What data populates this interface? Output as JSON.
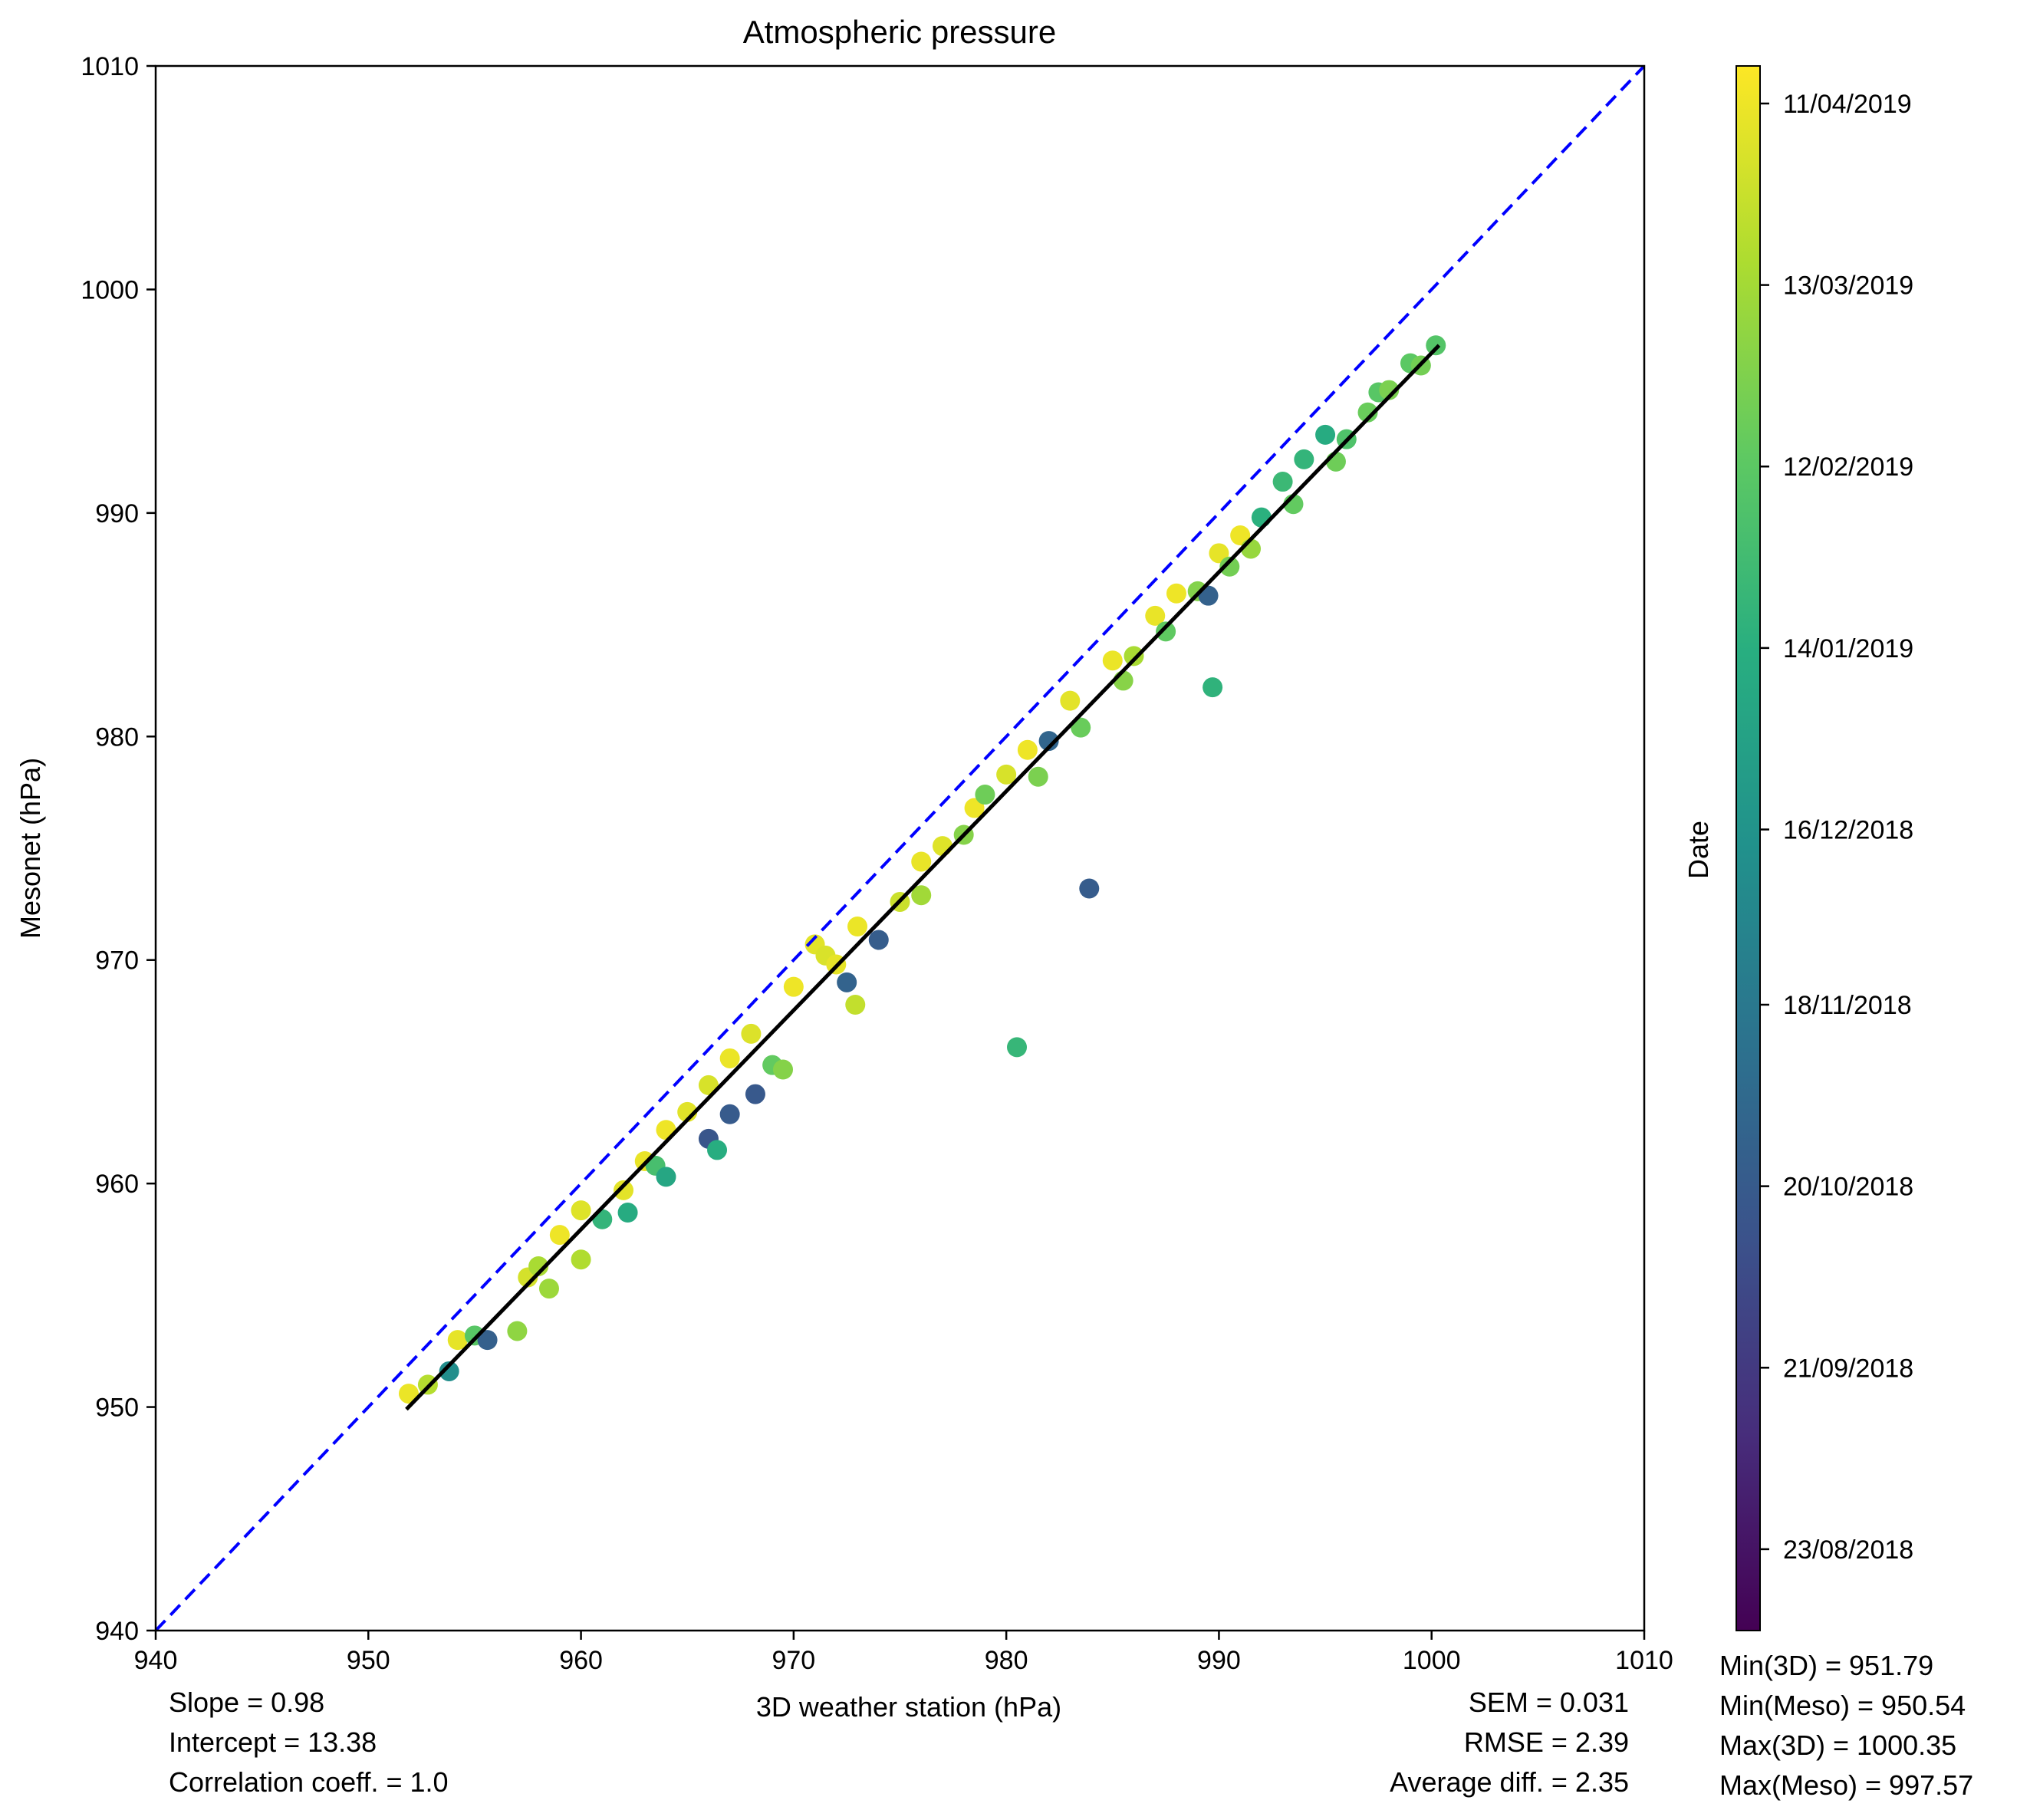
{
  "chart_data": {
    "type": "scatter",
    "title": "Atmospheric pressure",
    "xlabel": "3D weather station (hPa)",
    "ylabel": "Mesonet (hPa)",
    "xlim": [
      940,
      1010
    ],
    "ylim": [
      940,
      1010
    ],
    "xticks": [
      "940",
      "950",
      "960",
      "970",
      "980",
      "990",
      "1000",
      "1010"
    ],
    "yticks": [
      "940",
      "950",
      "960",
      "970",
      "980",
      "990",
      "1000",
      "1010"
    ],
    "grid": false,
    "colormap": "viridis",
    "colorbar": {
      "label": "Date",
      "start": "2018-08-10",
      "end": "2019-04-17",
      "ticks": [
        {
          "label": "23/08/2018",
          "date": "2018-08-23"
        },
        {
          "label": "21/09/2018",
          "date": "2018-09-21"
        },
        {
          "label": "20/10/2018",
          "date": "2018-10-20"
        },
        {
          "label": "18/11/2018",
          "date": "2018-11-18"
        },
        {
          "label": "16/12/2018",
          "date": "2018-12-16"
        },
        {
          "label": "14/01/2019",
          "date": "2019-01-14"
        },
        {
          "label": "12/02/2019",
          "date": "2019-02-12"
        },
        {
          "label": "13/03/2019",
          "date": "2019-03-13"
        },
        {
          "label": "11/04/2019",
          "date": "2019-04-11"
        }
      ]
    },
    "series": [
      {
        "type": "identity-line",
        "color": "#0000ff",
        "style": "dashed",
        "x": [
          940,
          1010
        ],
        "y": [
          940,
          1010
        ]
      },
      {
        "type": "regression-line",
        "color": "#000000",
        "style": "solid",
        "x": [
          951.79,
          1000.35
        ],
        "y": [
          949.9,
          997.5
        ]
      },
      {
        "type": "scatter",
        "colored_by": "date",
        "points": [
          {
            "x": 951.9,
            "y": 950.6,
            "date": "2019-04-10"
          },
          {
            "x": 952.8,
            "y": 951.0,
            "date": "2019-03-20"
          },
          {
            "x": 953.8,
            "y": 951.6,
            "date": "2018-12-10"
          },
          {
            "x": 954.2,
            "y": 953.0,
            "date": "2019-04-08"
          },
          {
            "x": 955.0,
            "y": 953.2,
            "date": "2019-02-10"
          },
          {
            "x": 955.6,
            "y": 953.0,
            "date": "2018-10-25"
          },
          {
            "x": 957.0,
            "y": 953.4,
            "date": "2019-03-05"
          },
          {
            "x": 957.5,
            "y": 955.8,
            "date": "2019-04-01"
          },
          {
            "x": 958.0,
            "y": 956.3,
            "date": "2019-03-15"
          },
          {
            "x": 958.5,
            "y": 955.3,
            "date": "2019-03-10"
          },
          {
            "x": 959.0,
            "y": 957.7,
            "date": "2019-04-11"
          },
          {
            "x": 960.0,
            "y": 958.8,
            "date": "2019-04-05"
          },
          {
            "x": 960.0,
            "y": 956.6,
            "date": "2019-03-18"
          },
          {
            "x": 961.0,
            "y": 958.4,
            "date": "2019-01-20"
          },
          {
            "x": 962.0,
            "y": 959.7,
            "date": "2019-04-07"
          },
          {
            "x": 962.2,
            "y": 958.7,
            "date": "2019-01-10"
          },
          {
            "x": 963.0,
            "y": 961.0,
            "date": "2019-04-09"
          },
          {
            "x": 963.5,
            "y": 960.8,
            "date": "2019-02-01"
          },
          {
            "x": 964.0,
            "y": 962.4,
            "date": "2019-04-11"
          },
          {
            "x": 964.0,
            "y": 960.3,
            "date": "2019-01-05"
          },
          {
            "x": 965.0,
            "y": 963.2,
            "date": "2019-04-06"
          },
          {
            "x": 966.0,
            "y": 964.4,
            "date": "2019-04-02"
          },
          {
            "x": 966.0,
            "y": 962.0,
            "date": "2018-10-15"
          },
          {
            "x": 966.4,
            "y": 961.5,
            "date": "2019-01-12"
          },
          {
            "x": 967.0,
            "y": 963.1,
            "date": "2018-10-20"
          },
          {
            "x": 967.0,
            "y": 965.6,
            "date": "2019-04-10"
          },
          {
            "x": 968.0,
            "y": 966.7,
            "date": "2019-04-04"
          },
          {
            "x": 968.2,
            "y": 964.0,
            "date": "2018-10-18"
          },
          {
            "x": 969.0,
            "y": 965.3,
            "date": "2019-02-15"
          },
          {
            "x": 969.5,
            "y": 965.1,
            "date": "2019-03-01"
          },
          {
            "x": 970.0,
            "y": 968.8,
            "date": "2019-04-11"
          },
          {
            "x": 971.0,
            "y": 970.7,
            "date": "2019-04-06"
          },
          {
            "x": 971.5,
            "y": 970.2,
            "date": "2019-04-03"
          },
          {
            "x": 972.0,
            "y": 969.8,
            "date": "2019-04-08"
          },
          {
            "x": 972.5,
            "y": 969.0,
            "date": "2018-10-28"
          },
          {
            "x": 972.9,
            "y": 968.0,
            "date": "2019-03-25"
          },
          {
            "x": 973.0,
            "y": 971.5,
            "date": "2019-04-10"
          },
          {
            "x": 974.0,
            "y": 970.9,
            "date": "2018-10-22"
          },
          {
            "x": 975.0,
            "y": 972.6,
            "date": "2019-03-28"
          },
          {
            "x": 976.0,
            "y": 974.4,
            "date": "2019-04-09"
          },
          {
            "x": 976.0,
            "y": 972.9,
            "date": "2019-03-12"
          },
          {
            "x": 977.0,
            "y": 975.1,
            "date": "2019-04-05"
          },
          {
            "x": 978.0,
            "y": 975.6,
            "date": "2019-03-01"
          },
          {
            "x": 978.5,
            "y": 976.8,
            "date": "2019-04-11"
          },
          {
            "x": 979.0,
            "y": 977.4,
            "date": "2019-02-20"
          },
          {
            "x": 980.0,
            "y": 978.3,
            "date": "2019-04-02"
          },
          {
            "x": 980.5,
            "y": 966.1,
            "date": "2019-01-22"
          },
          {
            "x": 981.0,
            "y": 979.4,
            "date": "2019-04-11"
          },
          {
            "x": 981.5,
            "y": 978.2,
            "date": "2019-02-25"
          },
          {
            "x": 982.0,
            "y": 979.8,
            "date": "2018-10-30"
          },
          {
            "x": 983.0,
            "y": 981.6,
            "date": "2019-04-07"
          },
          {
            "x": 983.5,
            "y": 980.4,
            "date": "2019-02-18"
          },
          {
            "x": 983.9,
            "y": 973.2,
            "date": "2018-10-21"
          },
          {
            "x": 985.0,
            "y": 983.4,
            "date": "2019-04-10"
          },
          {
            "x": 985.5,
            "y": 982.5,
            "date": "2019-03-02"
          },
          {
            "x": 986.0,
            "y": 983.6,
            "date": "2019-03-15"
          },
          {
            "x": 987.0,
            "y": 985.4,
            "date": "2019-04-09"
          },
          {
            "x": 987.5,
            "y": 984.7,
            "date": "2019-02-14"
          },
          {
            "x": 988.0,
            "y": 986.4,
            "date": "2019-04-11"
          },
          {
            "x": 989.0,
            "y": 986.5,
            "date": "2019-02-28"
          },
          {
            "x": 989.5,
            "y": 986.3,
            "date": "2018-10-26"
          },
          {
            "x": 989.7,
            "y": 982.2,
            "date": "2019-01-18"
          },
          {
            "x": 990.0,
            "y": 988.2,
            "date": "2019-04-08"
          },
          {
            "x": 990.5,
            "y": 987.6,
            "date": "2019-02-22"
          },
          {
            "x": 991.0,
            "y": 989.0,
            "date": "2019-04-11"
          },
          {
            "x": 991.5,
            "y": 988.4,
            "date": "2019-03-08"
          },
          {
            "x": 992.0,
            "y": 989.8,
            "date": "2019-01-15"
          },
          {
            "x": 993.0,
            "y": 991.4,
            "date": "2019-01-25"
          },
          {
            "x": 993.5,
            "y": 990.4,
            "date": "2019-02-15"
          },
          {
            "x": 994.0,
            "y": 992.4,
            "date": "2019-01-20"
          },
          {
            "x": 995.0,
            "y": 993.5,
            "date": "2019-01-10"
          },
          {
            "x": 995.5,
            "y": 992.3,
            "date": "2019-02-20"
          },
          {
            "x": 996.0,
            "y": 993.3,
            "date": "2019-02-05"
          },
          {
            "x": 997.0,
            "y": 994.5,
            "date": "2019-02-18"
          },
          {
            "x": 997.5,
            "y": 995.4,
            "date": "2019-02-10"
          },
          {
            "x": 998.0,
            "y": 995.5,
            "date": "2019-02-25"
          },
          {
            "x": 999.0,
            "y": 996.7,
            "date": "2019-02-12"
          },
          {
            "x": 999.5,
            "y": 996.6,
            "date": "2019-02-22"
          },
          {
            "x": 1000.2,
            "y": 997.5,
            "date": "2019-02-08"
          }
        ]
      }
    ],
    "annotations": {
      "left": [
        "Slope = 0.98",
        "Intercept = 13.38",
        "Correlation coeff. = 1.0"
      ],
      "right": [
        "SEM = 0.031",
        "RMSE = 2.39",
        "Average diff. = 2.35"
      ],
      "far_right": [
        "Min(3D) = 951.79",
        "Min(Meso) = 950.54",
        "Max(3D) = 1000.35",
        "Max(Meso) = 997.57"
      ]
    }
  }
}
